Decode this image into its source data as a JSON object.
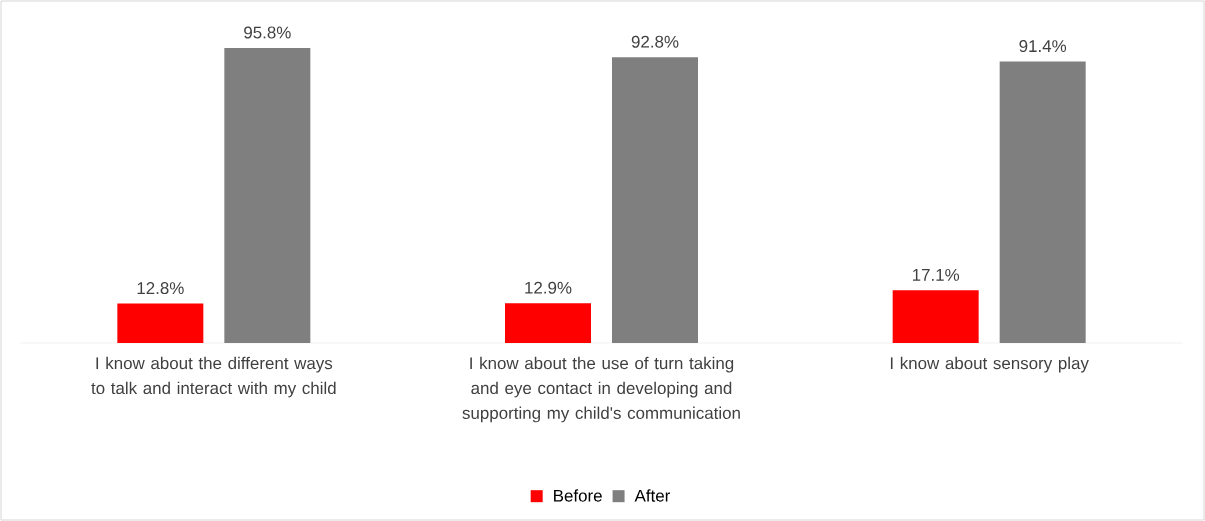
{
  "chart_data": {
    "type": "bar",
    "categories": [
      "I know about the different ways to talk and interact with my child",
      "I know about the use of turn taking and eye contact in developing and supporting my child's communication",
      "I know about sensory play"
    ],
    "series": [
      {
        "name": "Before",
        "color": "#ff0000",
        "values": [
          12.8,
          12.9,
          17.1
        ],
        "value_labels": [
          "12.8%",
          "12.9%",
          "17.1%"
        ]
      },
      {
        "name": "After",
        "color": "#7f7f7f",
        "values": [
          95.8,
          92.8,
          91.4
        ],
        "value_labels": [
          "95.8%",
          "92.8%",
          "91.4%"
        ]
      }
    ],
    "legend": "bottom"
  }
}
